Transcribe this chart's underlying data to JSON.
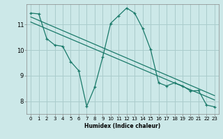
{
  "bg_color": "#cce8e8",
  "grid_color": "#aacccc",
  "line_color": "#1a7a6a",
  "xlabel": "Humidex (Indice chaleur)",
  "ylabel_ticks": [
    8,
    9,
    10,
    11
  ],
  "xlim": [
    -0.5,
    23.5
  ],
  "ylim": [
    7.5,
    11.8
  ],
  "xticks": [
    0,
    1,
    2,
    3,
    4,
    5,
    6,
    7,
    8,
    9,
    10,
    11,
    12,
    13,
    14,
    15,
    16,
    17,
    18,
    19,
    20,
    21,
    22,
    23
  ],
  "series1_x": [
    0,
    1,
    2,
    3,
    4,
    5,
    6,
    7,
    8,
    9,
    10,
    11,
    12,
    13,
    14,
    15,
    16,
    17,
    18,
    19,
    20,
    21,
    22,
    23
  ],
  "series1_y": [
    11.45,
    11.42,
    10.45,
    10.2,
    10.15,
    9.55,
    9.2,
    7.8,
    8.55,
    9.72,
    11.05,
    11.35,
    11.65,
    11.45,
    10.85,
    10.02,
    8.72,
    8.6,
    8.72,
    8.6,
    8.4,
    8.42,
    7.85,
    7.78
  ],
  "series2_x": [
    0,
    23
  ],
  "series2_y": [
    11.3,
    8.22
  ],
  "series3_x": [
    0,
    23
  ],
  "series3_y": [
    11.1,
    8.05
  ]
}
